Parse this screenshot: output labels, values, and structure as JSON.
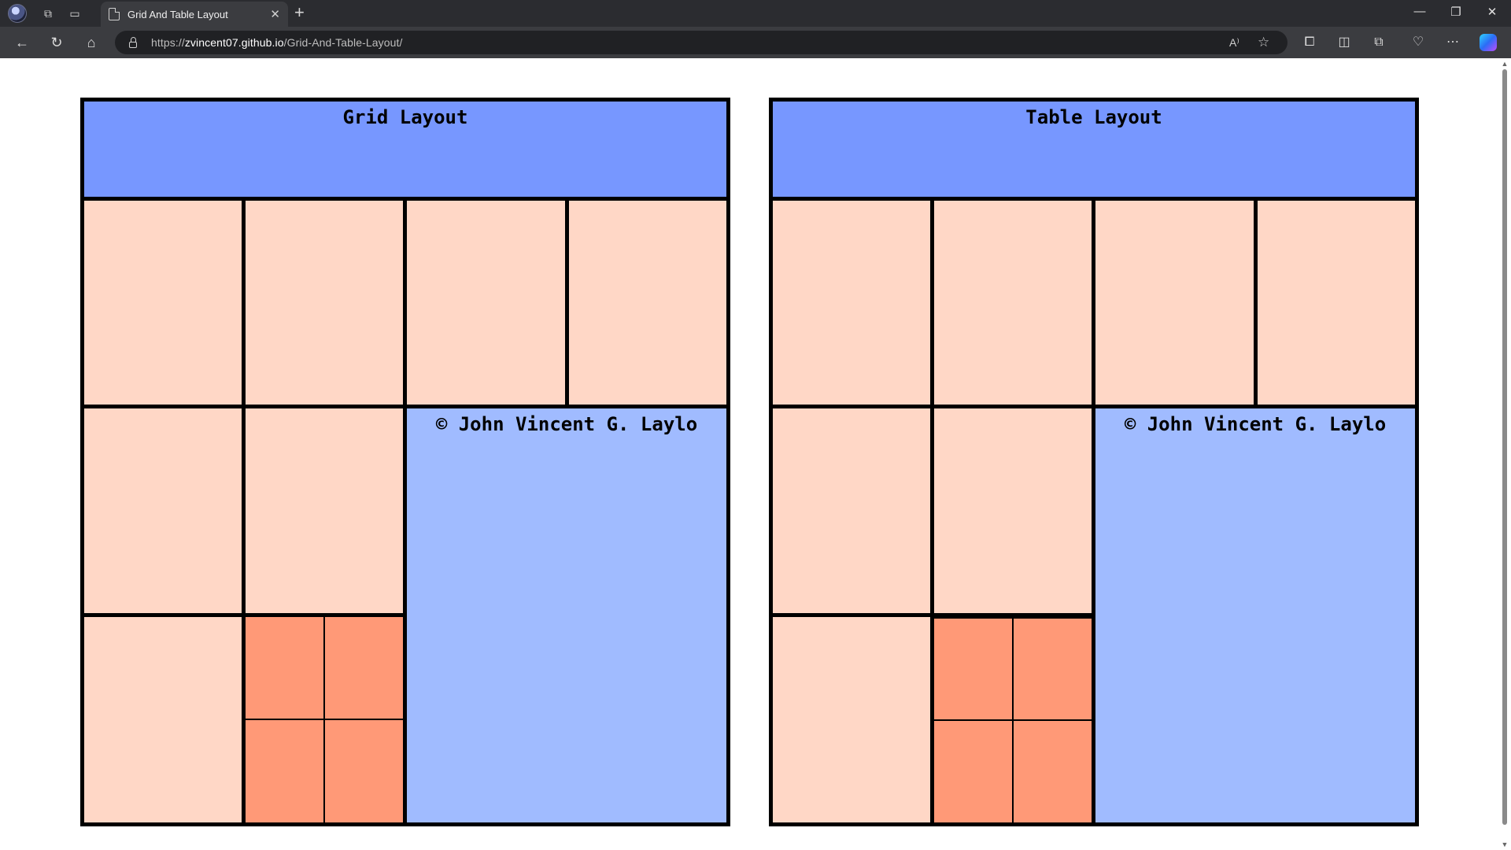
{
  "browser": {
    "tab_title": "Grid And Table Layout",
    "tab_close": "✕",
    "new_tab": "+",
    "url_scheme": "https://",
    "url_host": "zvincent07.github.io",
    "url_path": "/Grid-And-Table-Layout/",
    "read_aloud": "A⁾",
    "window_minimize": "—",
    "window_restore": "❐",
    "window_close": "✕"
  },
  "panels": [
    {
      "title": "Grid Layout",
      "credit": "© John Vincent G. Laylo"
    },
    {
      "title": "Table Layout",
      "credit": "© John Vincent G. Laylo"
    }
  ],
  "colors": {
    "header": "#7797ff",
    "cell": "#ffd7c6",
    "small_cell": "#ff9977",
    "credit_cell": "#a0bbff",
    "border": "#000000"
  }
}
